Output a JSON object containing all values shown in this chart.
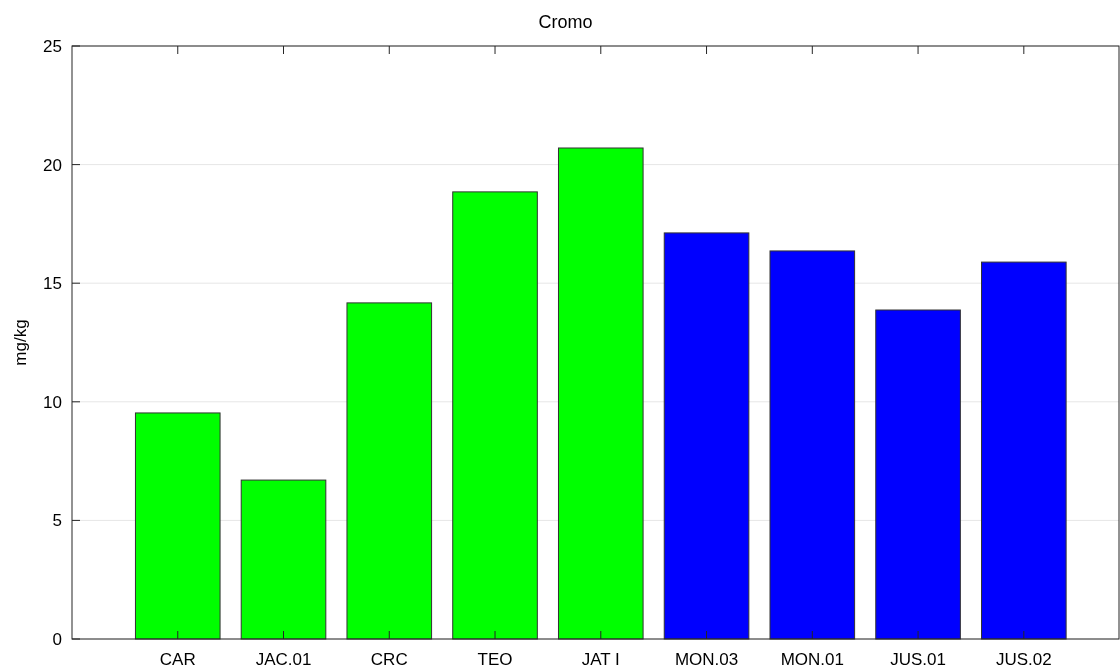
{
  "chart_data": {
    "type": "bar",
    "title": "Cromo",
    "ylabel": "mg/kg",
    "categories": [
      "CAR",
      "JAC.01",
      "CRC",
      "TEO",
      "JAT I",
      "MON.03",
      "MON.01",
      "JUS.01",
      "JUS.02"
    ],
    "values": [
      9.53,
      6.7,
      14.17,
      18.85,
      20.7,
      17.12,
      16.36,
      13.87,
      15.89
    ],
    "colors": [
      "#00ff00",
      "#00ff00",
      "#00ff00",
      "#00ff00",
      "#00ff00",
      "#0000ff",
      "#0000ff",
      "#0000ff",
      "#0000ff"
    ],
    "ylim": [
      0,
      25
    ],
    "yticks": [
      0,
      5,
      10,
      15,
      20,
      25
    ],
    "grid": "y"
  }
}
